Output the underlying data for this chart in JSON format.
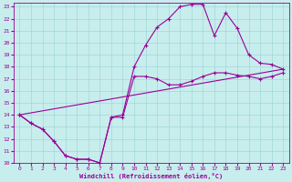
{
  "xlabel": "Windchill (Refroidissement éolien,°C)",
  "xlim": [
    -0.5,
    23.5
  ],
  "ylim": [
    10,
    23.3
  ],
  "xticks": [
    0,
    1,
    2,
    3,
    4,
    5,
    6,
    7,
    8,
    9,
    10,
    11,
    12,
    13,
    14,
    15,
    16,
    17,
    18,
    19,
    20,
    21,
    22,
    23
  ],
  "yticks": [
    10,
    11,
    12,
    13,
    14,
    15,
    16,
    17,
    18,
    19,
    20,
    21,
    22,
    23
  ],
  "bg_color": "#c8eded",
  "grid_color": "#a0d8d8",
  "line_color": "#990099",
  "curve1_x": [
    0,
    1,
    2,
    3,
    4,
    5,
    6,
    7,
    8,
    9,
    10,
    11,
    12,
    13,
    14,
    15,
    16,
    17,
    18,
    19,
    20,
    21,
    22,
    23
  ],
  "curve1_y": [
    14.0,
    13.3,
    12.8,
    11.8,
    10.6,
    10.3,
    10.3,
    10.0,
    13.8,
    14.0,
    18.0,
    19.8,
    21.3,
    22.0,
    23.0,
    23.2,
    23.2,
    20.6,
    22.5,
    21.2,
    19.0,
    18.3,
    18.2,
    17.8
  ],
  "curve2_x": [
    0,
    1,
    2,
    3,
    4,
    5,
    6,
    7,
    8,
    9,
    10,
    11,
    12,
    13,
    14,
    15,
    16,
    17,
    18,
    19,
    20,
    21,
    22,
    23
  ],
  "curve2_y": [
    14.0,
    13.3,
    12.8,
    11.8,
    10.6,
    10.3,
    10.3,
    10.0,
    13.8,
    13.8,
    17.2,
    17.2,
    17.0,
    16.5,
    16.5,
    16.8,
    17.2,
    17.5,
    17.5,
    17.3,
    17.2,
    17.0,
    17.2,
    17.5
  ],
  "curve3_x": [
    0,
    23
  ],
  "curve3_y": [
    14.0,
    17.8
  ]
}
